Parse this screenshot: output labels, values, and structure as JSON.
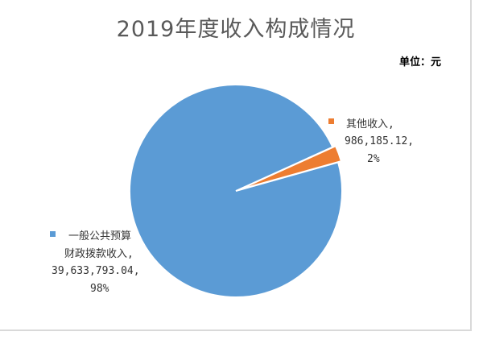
{
  "chart_data": {
    "type": "pie",
    "title": "2019年度收入构成情况",
    "unit_note": "单位：元",
    "slices": [
      {
        "name_line1": "一般公共预算",
        "name_line2": "财政拨款收入,",
        "value_text": "39,633,793.04,",
        "pct_text": "98%",
        "value": 39633793.04,
        "color": "#5b9bd5"
      },
      {
        "name_line1": "其他收入,",
        "value_text": "986,185.12,",
        "pct_text": "2%",
        "value": 986185.12,
        "color": "#ed7d31"
      }
    ],
    "legend": "inline-labels"
  }
}
